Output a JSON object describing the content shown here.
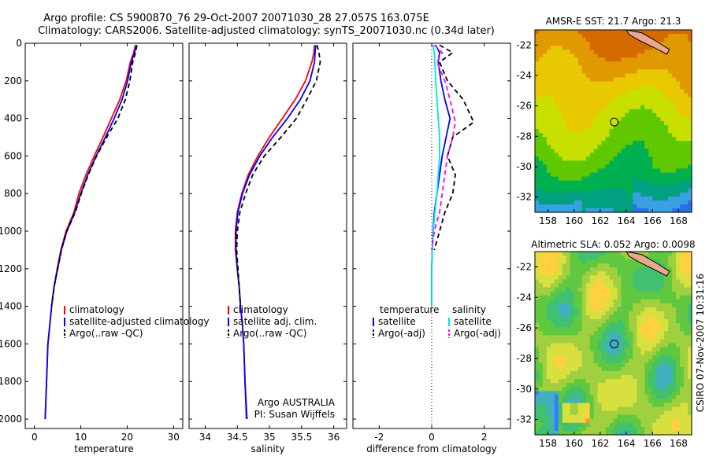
{
  "header": {
    "line1": "Argo profile: CS 5900870_76 29-Oct-2007 20071030_28 27.057S 163.075E",
    "line2": "Climatology: CARS2006. Satellite-adjusted climatology: synTS_20071030.nc (0.34d later)"
  },
  "side_stamp": "CSIRO 07-Nov-2007 10:31:16",
  "float_info": {
    "line1": "Argo AUSTRALIA",
    "line2": "PI: Susan Wijffels"
  },
  "colors": {
    "climatology": "#ff0000",
    "satellite": "#0000ff",
    "argo": "#000000",
    "sat_sal": "#00e5e5",
    "argo_sal": "#ff00ff"
  },
  "chart_data": [
    {
      "type": "line",
      "xlabel": "temperature",
      "xlim": [
        -2,
        32
      ],
      "xticks": [
        0,
        10,
        20,
        30
      ],
      "ylim": [
        0,
        2050
      ],
      "yticks": [
        0,
        200,
        400,
        600,
        800,
        1000,
        1200,
        1400,
        1600,
        1800,
        2000
      ],
      "legend_position": "lower-right",
      "series": [
        {
          "name": "climatology",
          "color": "#ff0000",
          "dash": "solid",
          "x": [
            21.8,
            21.4,
            20.7,
            19.8,
            18.4,
            16.6,
            14.8,
            12.9,
            11.1,
            9.6,
            8.5,
            6.8,
            5.7,
            4.9,
            4.2,
            3.7,
            3.3,
            2.9,
            2.6,
            2.3
          ],
          "y": [
            10,
            50,
            100,
            200,
            300,
            400,
            500,
            600,
            700,
            800,
            900,
            1000,
            1100,
            1200,
            1300,
            1400,
            1500,
            1600,
            1800,
            2000
          ]
        },
        {
          "name": "satellite-adjusted climatology",
          "color": "#0000ff",
          "dash": "solid",
          "x": [
            22.0,
            21.6,
            20.9,
            20.1,
            18.9,
            17.2,
            15.3,
            13.3,
            11.5,
            10.0,
            8.7,
            7.0,
            5.8,
            5.0,
            4.2,
            3.7,
            3.3,
            2.9,
            2.6,
            2.3
          ],
          "y": [
            10,
            50,
            100,
            200,
            300,
            400,
            500,
            600,
            700,
            800,
            900,
            1000,
            1100,
            1200,
            1300,
            1400,
            1500,
            1600,
            1800,
            2000
          ]
        },
        {
          "name": "Argo(..raw -QC)",
          "color": "#000000",
          "dash": "6,4",
          "x": [
            22.1,
            21.8,
            21.2,
            20.6,
            19.6,
            18.0,
            15.6,
            13.4,
            11.6,
            10.1,
            8.8,
            7.0,
            5.8,
            5.0,
            4.2,
            3.7
          ],
          "y": [
            10,
            50,
            100,
            200,
            300,
            400,
            500,
            600,
            700,
            800,
            900,
            1000,
            1100,
            1200,
            1300,
            1400
          ]
        }
      ]
    },
    {
      "type": "line",
      "xlabel": "salinity",
      "xlim": [
        33.75,
        36.2
      ],
      "xticks": [
        34,
        34.5,
        35,
        35.5,
        36
      ],
      "ylim": [
        0,
        2050
      ],
      "yticks": [
        0,
        200,
        400,
        600,
        800,
        1000,
        1200,
        1400,
        1600,
        1800,
        2000
      ],
      "legend_position": "lower-right",
      "series": [
        {
          "name": "climatology",
          "color": "#ff0000",
          "dash": "solid",
          "x": [
            35.7,
            35.69,
            35.66,
            35.56,
            35.4,
            35.2,
            35.0,
            34.82,
            34.67,
            34.57,
            34.5,
            34.47,
            34.47,
            34.5,
            34.53,
            34.55,
            34.58,
            34.6,
            34.62,
            34.64
          ],
          "y": [
            10,
            50,
            100,
            200,
            300,
            400,
            500,
            600,
            700,
            800,
            900,
            1000,
            1100,
            1200,
            1300,
            1400,
            1500,
            1600,
            1800,
            2000
          ]
        },
        {
          "name": "satellite adj. clim.",
          "color": "#0000ff",
          "dash": "solid",
          "x": [
            35.72,
            35.71,
            35.7,
            35.63,
            35.48,
            35.28,
            35.05,
            34.85,
            34.69,
            34.58,
            34.51,
            34.48,
            34.48,
            34.5,
            34.53,
            34.55,
            34.58,
            34.6,
            34.62,
            34.65
          ],
          "y": [
            10,
            50,
            100,
            200,
            300,
            400,
            500,
            600,
            700,
            800,
            900,
            1000,
            1100,
            1200,
            1300,
            1400,
            1500,
            1600,
            1800,
            2000
          ]
        },
        {
          "name": "Argo(..raw -QC)",
          "color": "#000000",
          "dash": "6,4",
          "x": [
            35.74,
            35.77,
            35.79,
            35.73,
            35.58,
            35.42,
            35.18,
            34.92,
            34.74,
            34.63,
            34.54,
            34.5,
            34.49,
            34.51,
            34.53,
            34.55
          ],
          "y": [
            10,
            50,
            100,
            200,
            300,
            400,
            500,
            600,
            700,
            800,
            900,
            1000,
            1100,
            1200,
            1300,
            1400
          ]
        }
      ]
    },
    {
      "type": "line",
      "xlabel": "difference from climatology",
      "xlim": [
        -3,
        3
      ],
      "xticks": [
        -2,
        0,
        2
      ],
      "ylim": [
        0,
        2050
      ],
      "yticks": [
        0,
        200,
        400,
        600,
        800,
        1000,
        1200,
        1400,
        1600,
        1800,
        2000
      ],
      "legend_groups": [
        "temperature",
        "salinity"
      ],
      "series": [
        {
          "name": "satellite",
          "group": "temperature",
          "color": "#0000ff",
          "dash": "solid",
          "x": [
            0.15,
            0.3,
            0.25,
            0.35,
            0.5,
            0.7,
            0.55,
            0.4,
            0.3,
            0.2,
            0.1,
            0.05,
            0.02,
            0,
            0
          ],
          "y": [
            10,
            50,
            100,
            200,
            300,
            400,
            500,
            600,
            700,
            800,
            900,
            1000,
            1100,
            1200,
            1400
          ]
        },
        {
          "name": "Argo(-adj)",
          "group": "temperature",
          "color": "#000000",
          "dash": "6,4",
          "x": [
            0.3,
            0.8,
            0.3,
            0.6,
            1.2,
            1.6,
            0.8,
            0.6,
            0.9,
            0.8,
            0.5,
            0.3,
            0.1
          ],
          "y": [
            10,
            50,
            100,
            200,
            300,
            420,
            500,
            600,
            700,
            800,
            900,
            1000,
            1100
          ]
        },
        {
          "name": "satellite",
          "group": "salinity",
          "color": "#00e5e5",
          "dash": "solid",
          "x": [
            0.05,
            0.1,
            0.12,
            0.15,
            0.2,
            0.25,
            0.3,
            0.3,
            0.25,
            0.2,
            0.12,
            0.06,
            0.02,
            0,
            0
          ],
          "y": [
            10,
            50,
            100,
            200,
            300,
            400,
            500,
            600,
            700,
            800,
            900,
            1000,
            1100,
            1200,
            1400
          ]
        },
        {
          "name": "Argo(-adj)",
          "group": "salinity",
          "color": "#ff00ff",
          "dash": "6,4",
          "x": [
            0.1,
            0.4,
            0.2,
            0.5,
            0.7,
            0.9,
            0.8,
            0.6,
            0.5,
            0.4,
            0.3,
            0.1,
            0
          ],
          "y": [
            10,
            50,
            100,
            200,
            300,
            420,
            500,
            600,
            700,
            800,
            900,
            1000,
            1100
          ]
        }
      ]
    },
    {
      "type": "heatmap",
      "title": "AMSR-E SST: 21.7 Argo: 21.3",
      "xlim": [
        157,
        169
      ],
      "xticks": [
        158,
        160,
        162,
        164,
        166,
        168
      ],
      "ylim": [
        -33,
        -21
      ],
      "yticks": [
        -22,
        -24,
        -26,
        -28,
        -30,
        -32
      ],
      "marker": {
        "lon": 163.075,
        "lat": -27.057
      },
      "palette": [
        "#d46a00",
        "#e09a00",
        "#e8c800",
        "#c8e000",
        "#60c800",
        "#00b050",
        "#00a080",
        "#3aa0e0",
        "#2a70e8"
      ]
    },
    {
      "type": "heatmap",
      "title": "Altimetric SLA: 0.052 Argo: 0.0098",
      "xlim": [
        157,
        169
      ],
      "xticks": [
        158,
        160,
        162,
        164,
        166,
        168
      ],
      "ylim": [
        -33,
        -21
      ],
      "yticks": [
        -22,
        -24,
        -26,
        -28,
        -30,
        -32
      ],
      "marker": {
        "lon": 163.075,
        "lat": -27.057
      },
      "palette": [
        "#2f80ff",
        "#40b0c0",
        "#40c070",
        "#60c840",
        "#a0d040",
        "#d8e040",
        "#ffd040",
        "#ff9040",
        "#ff4020"
      ]
    }
  ]
}
